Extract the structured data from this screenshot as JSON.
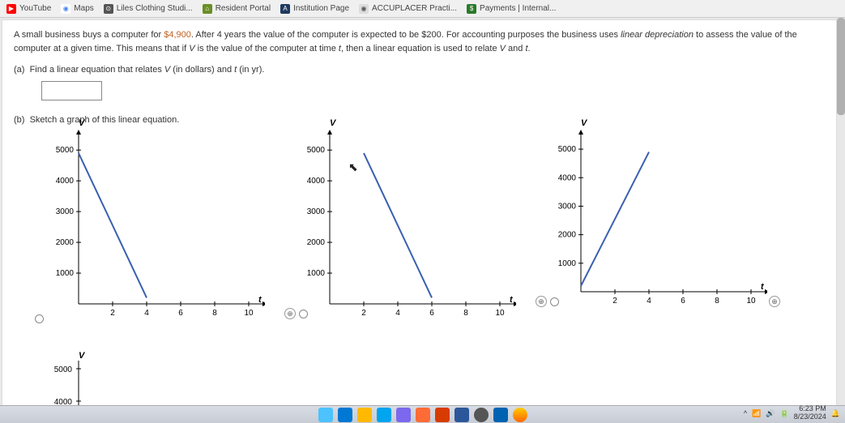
{
  "bookmarks": [
    {
      "label": "YouTube",
      "icon_bg": "#ff0000",
      "icon_text": "▶"
    },
    {
      "label": "Maps",
      "icon_bg": "#4285f4",
      "icon_text": "📍"
    },
    {
      "label": "Liles Clothing Studi...",
      "icon_bg": "#555",
      "icon_text": "⊙"
    },
    {
      "label": "Resident Portal",
      "icon_bg": "#6b8e23",
      "icon_text": "⌂"
    },
    {
      "label": "Institution Page",
      "icon_bg": "#1e3a5f",
      "icon_text": "A"
    },
    {
      "label": "ACCUPLACER Practi...",
      "icon_bg": "#ddd",
      "icon_text": "◉"
    },
    {
      "label": "Payments | Internal...",
      "icon_bg": "#2a7a2a",
      "icon_text": "$"
    }
  ],
  "problem": {
    "text1": "A small business buys a computer for ",
    "price": "$4,900",
    "text2": ". After 4 years the value of the computer is expected to be $200. For accounting purposes the business uses ",
    "italic1": "linear depreciation",
    "text3": " to assess the value of the computer at a given time. This means that if ",
    "italic2": "V",
    "text4": " is the value of the computer at time ",
    "italic3": "t",
    "text5": ", then a linear equation is used to relate ",
    "italic4": "V",
    "text6": " and ",
    "italic5": "t",
    "text7": "."
  },
  "part_a": {
    "label": "(a)",
    "text1": "Find a linear equation that relates ",
    "v1": "V",
    "text2": " (in dollars) and ",
    "v2": "t",
    "text3": " (in yr)."
  },
  "part_b": {
    "label": "(b)",
    "text": "Sketch a graph of this linear equation."
  },
  "chart_axes": {
    "y_ticks": [
      1000,
      2000,
      3000,
      4000,
      5000
    ],
    "x_ticks": [
      2,
      4,
      6,
      8,
      10
    ],
    "y_label": "V",
    "x_label": "t",
    "axis_color": "#000000",
    "line_color": "#3a5fb0",
    "line_width": 2,
    "tick_fontsize": 10
  },
  "graph1": {
    "line": {
      "x1": 0,
      "y1": 4900,
      "x2": 4,
      "y2": 200
    }
  },
  "graph2": {
    "line": {
      "x1": 2,
      "y1": 4900,
      "x2": 6,
      "y2": 200
    }
  },
  "graph3": {
    "line": {
      "x1": 0,
      "y1": 200,
      "x2": 4,
      "y2": 4900
    }
  },
  "graph4_partial": {
    "ylabels": [
      5000,
      4000
    ]
  },
  "tray": {
    "time": "6:23 PM",
    "date": "8/23/2024"
  }
}
